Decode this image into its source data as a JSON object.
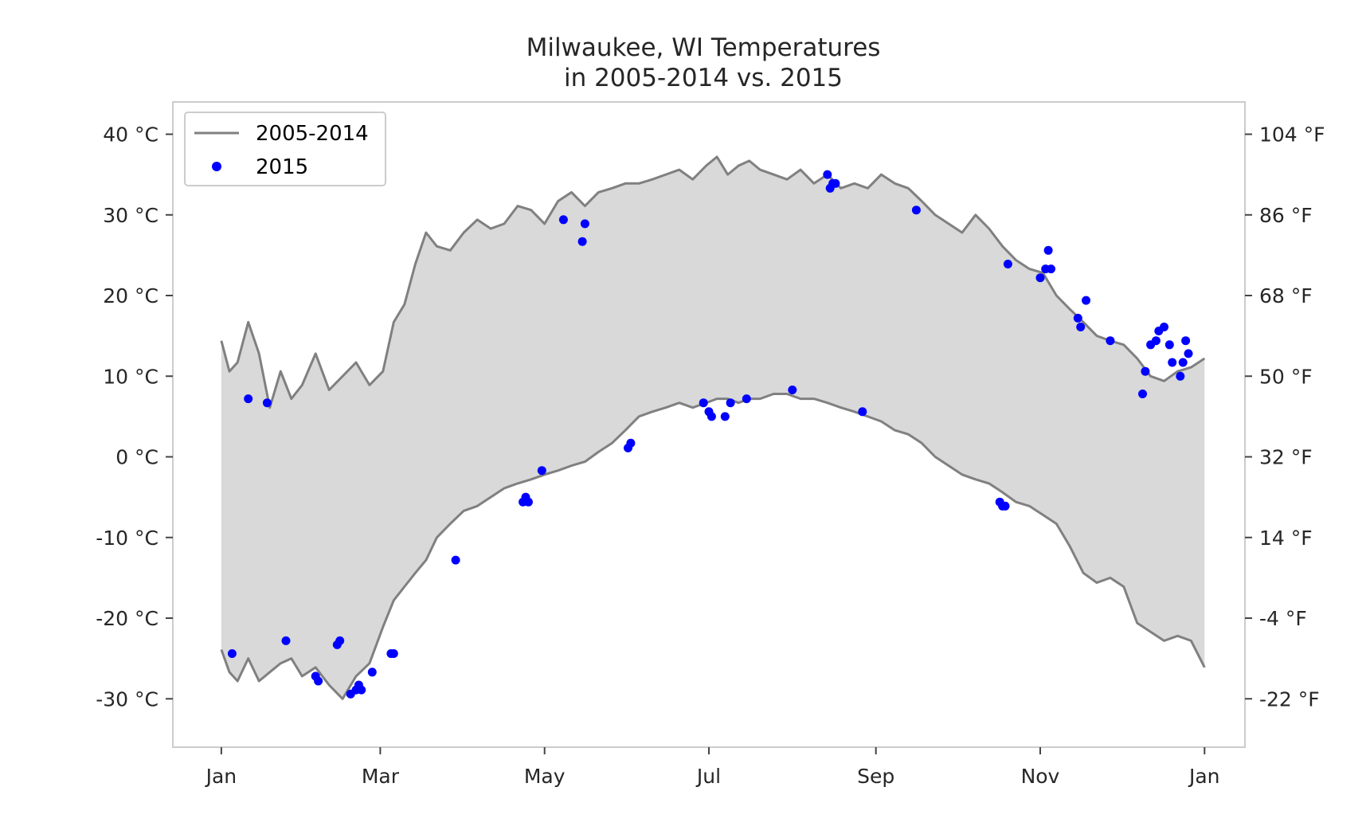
{
  "chart_data": {
    "type": "line",
    "title": [
      "Milwaukee, WI Temperatures",
      "in 2005-2014 vs. 2015"
    ],
    "xlabel": "",
    "ylabel": "",
    "x_ticks": [
      {
        "day": 0,
        "label": "Jan"
      },
      {
        "day": 59,
        "label": "Mar"
      },
      {
        "day": 120,
        "label": "May"
      },
      {
        "day": 181,
        "label": "Jul"
      },
      {
        "day": 243,
        "label": "Sep"
      },
      {
        "day": 304,
        "label": "Nov"
      },
      {
        "day": 365,
        "label": "Jan"
      }
    ],
    "xlim": [
      -18,
      380
    ],
    "ylim": [
      -36,
      44
    ],
    "y_ticks_left": [
      {
        "value": 40,
        "label": "40 °C"
      },
      {
        "value": 30,
        "label": "30 °C"
      },
      {
        "value": 20,
        "label": "20 °C"
      },
      {
        "value": 10,
        "label": "10 °C"
      },
      {
        "value": 0,
        "label": "0 °C"
      },
      {
        "value": -10,
        "label": "-10 °C"
      },
      {
        "value": -20,
        "label": "-20 °C"
      },
      {
        "value": -30,
        "label": "-30 °C"
      }
    ],
    "y_ticks_right": [
      {
        "value": 40,
        "label": "104 °F"
      },
      {
        "value": 30,
        "label": "86 °F"
      },
      {
        "value": 20,
        "label": "68 °F"
      },
      {
        "value": 10,
        "label": "50 °F"
      },
      {
        "value": 0,
        "label": "32 °F"
      },
      {
        "value": -10,
        "label": "14 °F"
      },
      {
        "value": -20,
        "label": "-4 °F"
      },
      {
        "value": -30,
        "label": "-22 °F"
      }
    ],
    "legend": {
      "position": "top-left",
      "entries": [
        {
          "label": "2005-2014",
          "kind": "line"
        },
        {
          "label": "2015",
          "kind": "marker"
        }
      ]
    },
    "series": [
      {
        "name": "2005-2014",
        "kind": "band",
        "color": "#808080",
        "fill": "#d9d9d9",
        "x": [
          0,
          3,
          6,
          10,
          14,
          18,
          22,
          26,
          30,
          35,
          40,
          45,
          50,
          55,
          60,
          64,
          68,
          72,
          76,
          80,
          85,
          90,
          95,
          100,
          105,
          110,
          115,
          120,
          125,
          130,
          135,
          140,
          145,
          150,
          155,
          160,
          165,
          170,
          175,
          180,
          184,
          188,
          192,
          196,
          200,
          205,
          210,
          215,
          220,
          225,
          230,
          235,
          240,
          245,
          250,
          255,
          260,
          265,
          270,
          275,
          280,
          285,
          290,
          295,
          300,
          305,
          310,
          315,
          320,
          325,
          330,
          335,
          340,
          345,
          350,
          355,
          360,
          365
        ],
        "high": [
          14.4,
          10.6,
          11.7,
          16.7,
          12.8,
          6.1,
          10.6,
          7.2,
          8.9,
          12.8,
          8.3,
          10.0,
          11.7,
          8.9,
          10.6,
          16.7,
          18.9,
          23.9,
          27.8,
          26.1,
          25.6,
          27.8,
          29.4,
          28.3,
          28.9,
          31.1,
          30.6,
          28.9,
          31.7,
          32.8,
          31.1,
          32.8,
          33.3,
          33.9,
          33.9,
          34.4,
          35.0,
          35.6,
          34.4,
          36.1,
          37.2,
          35.0,
          36.1,
          36.7,
          35.6,
          35.0,
          34.4,
          35.6,
          33.9,
          35.0,
          33.3,
          33.9,
          33.3,
          35.0,
          33.9,
          33.3,
          31.7,
          30.0,
          28.9,
          27.8,
          30.0,
          28.3,
          26.1,
          24.4,
          23.3,
          22.8,
          20.0,
          18.3,
          16.7,
          15.0,
          14.4,
          13.9,
          12.2,
          10.0,
          9.4,
          10.6,
          11.1,
          12.2
        ],
        "low": [
          -23.9,
          -26.7,
          -27.8,
          -25.0,
          -27.8,
          -26.7,
          -25.6,
          -25.0,
          -27.2,
          -26.1,
          -28.3,
          -30.0,
          -27.2,
          -25.6,
          -21.1,
          -17.8,
          -16.1,
          -14.4,
          -12.8,
          -10.0,
          -8.3,
          -6.7,
          -6.1,
          -5.0,
          -3.9,
          -3.3,
          -2.8,
          -2.2,
          -1.7,
          -1.1,
          -0.6,
          0.6,
          1.7,
          3.3,
          5.0,
          5.6,
          6.1,
          6.7,
          6.1,
          6.7,
          7.2,
          7.2,
          6.7,
          7.2,
          7.2,
          7.8,
          7.8,
          7.2,
          7.2,
          6.7,
          6.1,
          5.6,
          5.0,
          4.4,
          3.3,
          2.8,
          1.7,
          0.0,
          -1.1,
          -2.2,
          -2.8,
          -3.3,
          -4.4,
          -5.6,
          -6.1,
          -7.2,
          -8.3,
          -11.1,
          -14.4,
          -15.6,
          -15.0,
          -16.1,
          -20.6,
          -21.7,
          -22.8,
          -22.2,
          -22.8,
          -26.1
        ]
      },
      {
        "name": "2015",
        "kind": "scatter",
        "color": "#0000ff",
        "x": [
          4,
          10,
          17,
          24,
          35,
          36,
          43,
          44,
          48,
          50,
          51,
          52,
          56,
          63,
          64,
          87,
          113,
          112,
          114,
          119,
          127,
          134,
          135,
          151,
          152,
          179,
          181,
          182,
          187,
          189,
          195,
          212,
          225,
          226,
          227,
          228,
          238,
          258,
          289,
          290,
          291,
          292,
          304,
          306,
          307,
          308,
          318,
          319,
          321,
          330,
          342,
          343,
          345,
          347,
          348,
          350,
          352,
          353,
          356,
          357,
          358,
          359
        ],
        "y": [
          -24.4,
          7.2,
          6.7,
          -22.8,
          -27.2,
          -27.8,
          -23.3,
          -22.8,
          -29.4,
          -28.9,
          -28.3,
          -28.9,
          -26.7,
          -24.4,
          -24.4,
          -12.8,
          -5.0,
          -5.6,
          -5.6,
          -1.7,
          29.4,
          26.7,
          28.9,
          1.1,
          1.7,
          6.7,
          5.6,
          5.0,
          5.0,
          6.7,
          7.2,
          8.3,
          35.0,
          33.3,
          33.9,
          33.9,
          5.6,
          30.6,
          -5.6,
          -6.1,
          -6.1,
          23.9,
          22.2,
          23.3,
          25.6,
          23.3,
          17.2,
          16.1,
          19.4,
          14.4,
          7.8,
          10.6,
          13.9,
          14.4,
          15.6,
          16.1,
          13.9,
          11.7,
          10.0,
          11.7,
          14.4,
          12.8
        ]
      }
    ]
  }
}
